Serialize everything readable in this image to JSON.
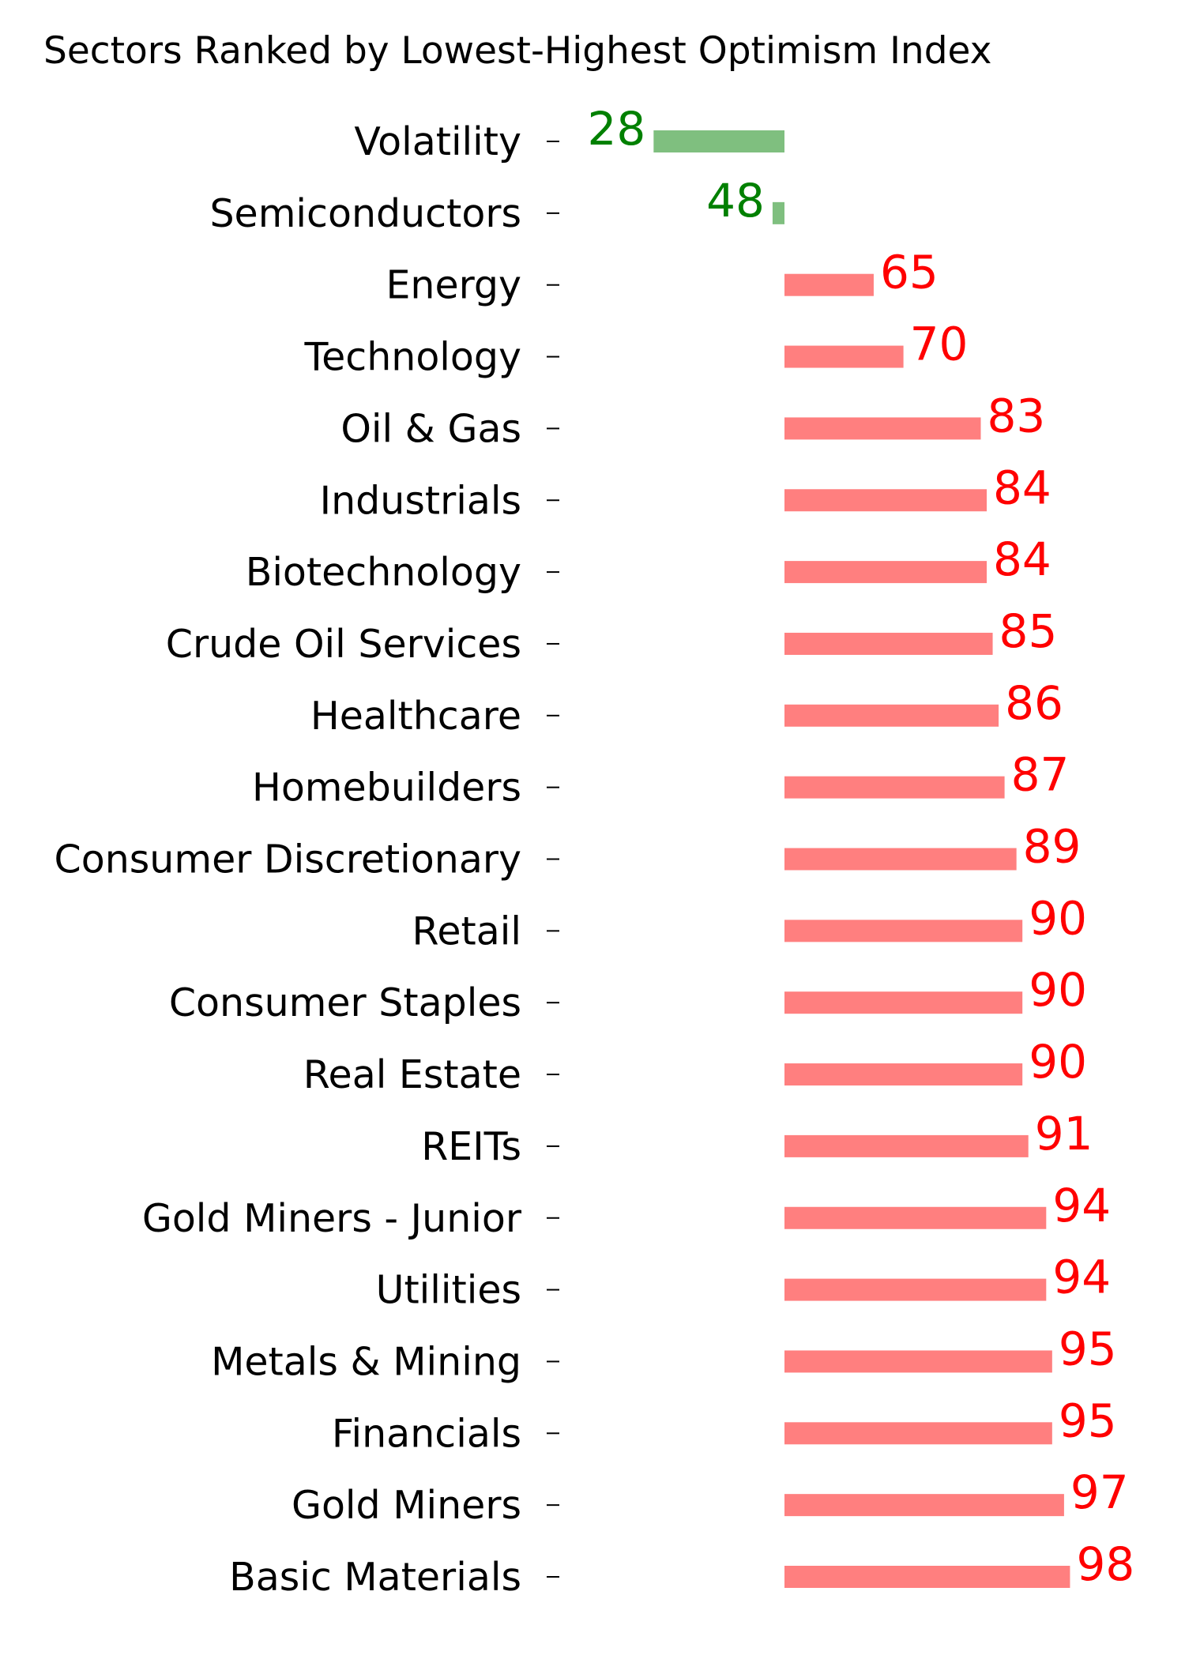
{
  "chart_data": {
    "type": "bar",
    "orientation": "horizontal",
    "title": "Sectors Ranked by Lowest-Highest Optimism Index",
    "xlabel": "",
    "ylabel": "",
    "baseline": 50,
    "xlim": [
      20,
      105
    ],
    "grid": false,
    "colors": {
      "below_baseline": "#7fbf7f",
      "above_baseline": "#ff7f7f",
      "below_label": "#008000",
      "above_label": "#ff0000"
    },
    "categories": [
      "Volatility",
      "Semiconductors",
      "Energy",
      "Technology",
      "Oil & Gas",
      "Industrials",
      "Biotechnology",
      "Crude Oil Services",
      "Healthcare",
      "Homebuilders",
      "Consumer Discretionary",
      "Retail",
      "Consumer Staples",
      "Real Estate",
      "REITs",
      "Gold Miners - Junior",
      "Utilities",
      "Metals & Mining",
      "Financials",
      "Gold Miners",
      "Basic Materials"
    ],
    "values": [
      28,
      48,
      65,
      70,
      83,
      84,
      84,
      85,
      86,
      87,
      89,
      90,
      90,
      90,
      91,
      94,
      94,
      95,
      95,
      97,
      98
    ],
    "data_labels": [
      "28",
      "48",
      "65",
      "70",
      "83",
      "84",
      "84",
      "85",
      "86",
      "87",
      "89",
      "90",
      "90",
      "90",
      "91",
      "94",
      "94",
      "95",
      "95",
      "97",
      "98"
    ]
  }
}
